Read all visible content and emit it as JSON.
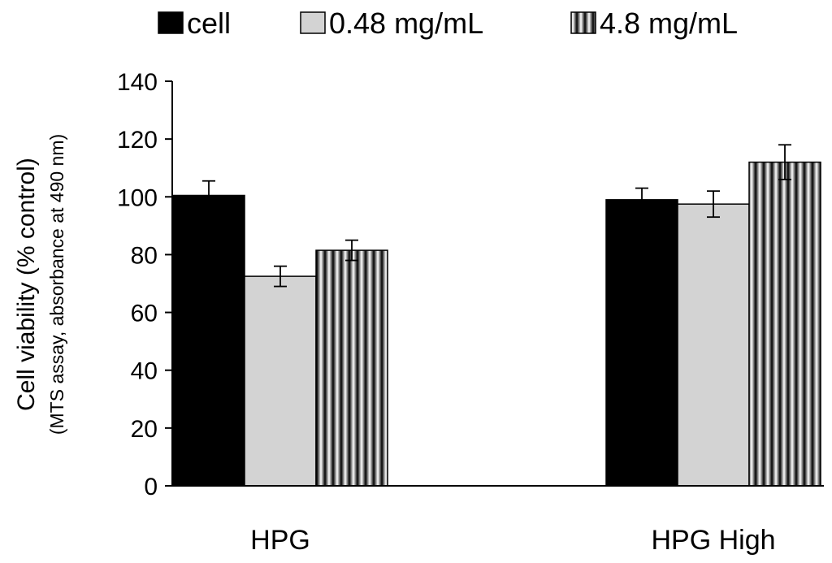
{
  "chart_data": {
    "type": "bar",
    "categories": [
      "HPG",
      "HPG High"
    ],
    "series": [
      {
        "name": "cell",
        "values": [
          100.5,
          99.0
        ],
        "errors": [
          5,
          4
        ],
        "fill": "solid-black"
      },
      {
        "name": "0.48 mg/mL",
        "values": [
          72.5,
          97.5
        ],
        "errors": [
          3.5,
          4.5
        ],
        "fill": "light-gray"
      },
      {
        "name": "4.8 mg/mL",
        "values": [
          81.5,
          112.0
        ],
        "errors": [
          3.5,
          6
        ],
        "fill": "vertical-stripes"
      }
    ],
    "title": "",
    "xlabel": "",
    "ylabel": "Cell viability (% control)",
    "ylabel_sub": "(MTS assay, absorbance at 490 nm)",
    "ylim": [
      0,
      140
    ],
    "yticks": [
      0,
      20,
      40,
      60,
      80,
      100,
      120,
      140
    ],
    "grid": false,
    "legend_position": "top",
    "colors": {
      "cell": "#000000",
      "0.48 mg/mL": "#d3d3d3",
      "stripe_dark": "#000000",
      "stripe_light": "#ffffff"
    }
  }
}
